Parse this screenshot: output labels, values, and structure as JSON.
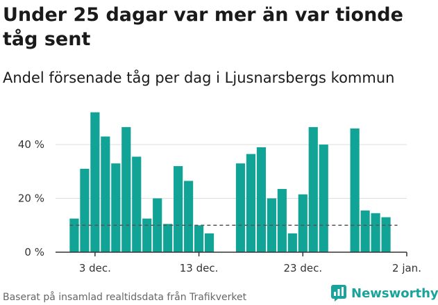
{
  "title": "Under 25 dagar var mer än var tionde tåg sent",
  "subtitle": "Andel försenade tåg per dag i Ljusnarsbergs kommun",
  "footer": "Baserat på insamlad realtidsdata från Trafikverket",
  "brand": {
    "name": "Newsworthy",
    "icon": "bar-chart-logo-icon"
  },
  "colors": {
    "bar": "#12a397",
    "grid": "#dddddd",
    "reference": "#555555",
    "brand": "#1aa39a"
  },
  "chart_data": {
    "type": "bar",
    "x_start_day": 1,
    "x_ticks": [
      {
        "day": 3,
        "label": "3 dec."
      },
      {
        "day": 13,
        "label": "13 dec."
      },
      {
        "day": 23,
        "label": "23 dec."
      },
      {
        "day": 33,
        "label": "2 jan."
      }
    ],
    "y_ticks": [
      {
        "value": 0,
        "label": "0 %"
      },
      {
        "value": 20,
        "label": "20 %"
      },
      {
        "value": 40,
        "label": "40 %"
      }
    ],
    "ylim": [
      0,
      55
    ],
    "xlim": [
      -0.8,
      33
    ],
    "values": [
      12.5,
      31,
      52,
      43,
      33,
      46.5,
      35.5,
      12.5,
      20,
      10.5,
      32,
      26.5,
      10,
      7,
      null,
      null,
      33,
      36.5,
      39,
      20,
      23.5,
      7,
      21.5,
      46.5,
      40,
      null,
      null,
      46,
      15.5,
      14.5,
      13
    ],
    "reference_line": {
      "value": 10,
      "style": "dashed"
    },
    "grid": true
  }
}
